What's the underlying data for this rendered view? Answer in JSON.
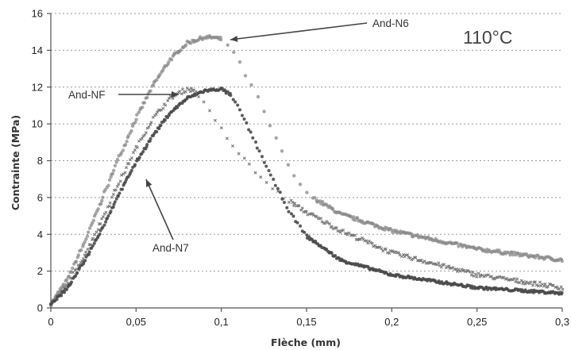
{
  "chart_data": {
    "type": "scatter",
    "xlabel": "Flèche (mm)",
    "ylabel": "Contrainte (MPa)",
    "xlim": [
      0,
      0.3
    ],
    "ylim": [
      0,
      16
    ],
    "x_ticks": [
      "0",
      "0,05",
      "0,1",
      "0,15",
      "0,2",
      "0,25",
      "0,3"
    ],
    "y_ticks": [
      "0",
      "2",
      "4",
      "6",
      "8",
      "10",
      "12",
      "14",
      "16"
    ],
    "grid": "horizontal-dashed",
    "temperature_label": "110°C",
    "series": [
      {
        "name": "And-N6",
        "color": "#8a8a8a",
        "x": [
          0,
          0.01,
          0.02,
          0.03,
          0.04,
          0.05,
          0.06,
          0.07,
          0.08,
          0.09,
          0.095,
          0.1,
          0.105,
          0.11,
          0.12,
          0.13,
          0.14,
          0.15,
          0.17,
          0.2,
          0.25,
          0.3
        ],
        "y": [
          0.2,
          1.6,
          3.6,
          5.9,
          8.2,
          10.3,
          12.1,
          13.5,
          14.4,
          14.7,
          14.7,
          14.6,
          14.2,
          13.4,
          11.7,
          9.6,
          7.6,
          6.2,
          5.1,
          4.2,
          3.2,
          2.6
        ]
      },
      {
        "name": "And-NF",
        "color": "#787878",
        "x": [
          0,
          0.01,
          0.02,
          0.03,
          0.04,
          0.05,
          0.06,
          0.07,
          0.08,
          0.085,
          0.09,
          0.1,
          0.11,
          0.12,
          0.13,
          0.14,
          0.15,
          0.17,
          0.2,
          0.25,
          0.3
        ],
        "y": [
          0.2,
          1.3,
          2.9,
          4.8,
          6.8,
          8.7,
          10.3,
          11.4,
          11.9,
          11.8,
          11.1,
          9.7,
          8.4,
          7.4,
          6.5,
          5.8,
          5.2,
          4.2,
          3.0,
          1.8,
          1.1
        ]
      },
      {
        "name": "And-N7",
        "color": "#4a4a4a",
        "x": [
          0,
          0.01,
          0.02,
          0.03,
          0.04,
          0.05,
          0.06,
          0.07,
          0.08,
          0.09,
          0.1,
          0.105,
          0.11,
          0.12,
          0.13,
          0.14,
          0.15,
          0.17,
          0.2,
          0.25,
          0.3
        ],
        "y": [
          0.2,
          1.1,
          2.6,
          4.3,
          6.2,
          7.9,
          9.4,
          10.6,
          11.4,
          11.8,
          11.9,
          11.6,
          10.9,
          9.0,
          7.0,
          5.2,
          3.9,
          2.6,
          1.8,
          1.1,
          0.8
        ]
      }
    ]
  }
}
